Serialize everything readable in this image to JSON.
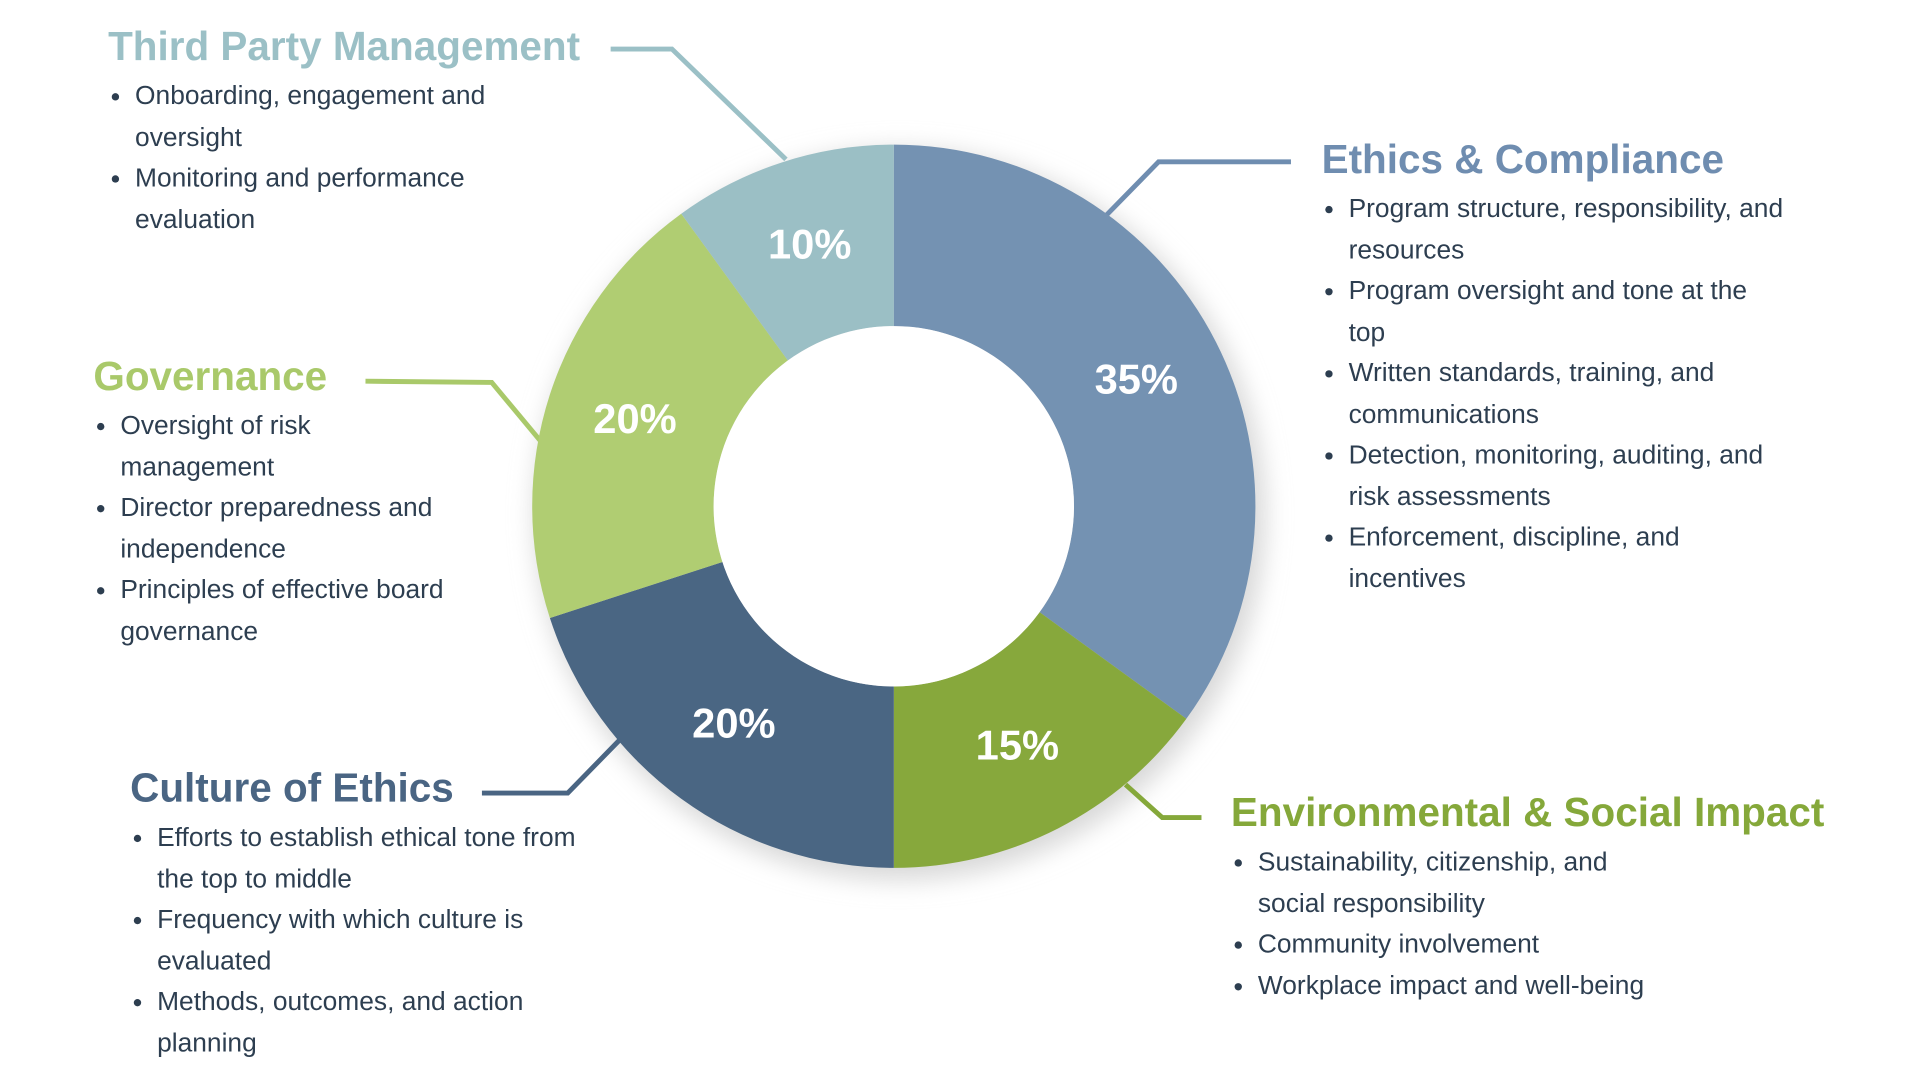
{
  "chart_data": {
    "type": "pie",
    "donut": true,
    "categories": [
      "Ethics & Compliance",
      "Environmental & Social Impact",
      "Culture of Ethics",
      "Governance",
      "Third Party Management"
    ],
    "values": [
      35,
      15,
      20,
      20,
      10
    ],
    "value_labels": [
      "35%",
      "15%",
      "20%",
      "20%",
      "10%"
    ],
    "colors": [
      "#7492b2",
      "#87a83c",
      "#4a6683",
      "#b0cd72",
      "#9bbfc5"
    ],
    "title_colors": [
      "#6f8db0",
      "#85a83a",
      "#4a6583",
      "#a9c96a",
      "#9bc0c6"
    ],
    "bullets": [
      [
        "Program structure, responsibility, and resources",
        "Program oversight and tone at the top",
        "Written standards, training, and communications",
        "Detection, monitoring, auditing, and risk assessments",
        "Enforcement, discipline, and incentives"
      ],
      [
        "Sustainability, citizenship, and social responsibility",
        "Community involvement",
        "Workplace impact and well-being"
      ],
      [
        "Efforts to establish ethical tone from the top to middle",
        "Frequency with which culture is evaluated",
        "Methods, outcomes, and action planning"
      ],
      [
        "Oversight of risk management",
        "Director preparedness and independence",
        "Principles of effective board governance"
      ],
      [
        "Onboarding, engagement and oversight",
        "Monitoring and performance evaluation"
      ]
    ]
  }
}
